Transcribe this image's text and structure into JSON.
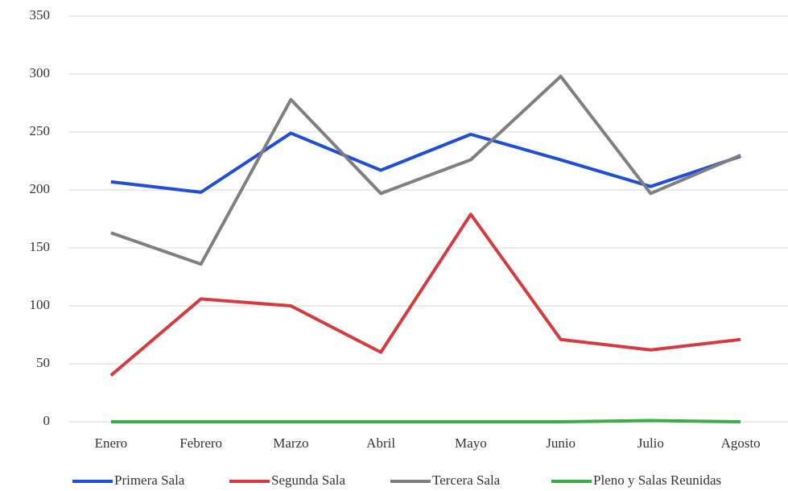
{
  "chart_data": {
    "type": "line",
    "categories": [
      "Enero",
      "Febrero",
      "Marzo",
      "Abril",
      "Mayo",
      "Junio",
      "Julio",
      "Agosto"
    ],
    "series": [
      {
        "name": "Primera Sala",
        "color": "#1f4fd8",
        "values": [
          207,
          198,
          249,
          217,
          248,
          226,
          203,
          229
        ]
      },
      {
        "name": "Segunda Sala",
        "color": "#d63a3f",
        "values": [
          40,
          106,
          100,
          60,
          179,
          71,
          62,
          71
        ]
      },
      {
        "name": "Tercera Sala",
        "color": "#7f7f7f",
        "values": [
          163,
          136,
          278,
          197,
          226,
          298,
          197,
          230
        ]
      },
      {
        "name": "Pleno y Salas Reunidas",
        "color": "#3cab4a",
        "values": [
          0,
          0,
          0,
          0,
          0,
          0,
          1,
          0
        ]
      }
    ],
    "ylim": [
      0,
      350
    ],
    "yticks": [
      0,
      50,
      100,
      150,
      200,
      250,
      300,
      350
    ],
    "grid": true,
    "legend": "bottom"
  }
}
